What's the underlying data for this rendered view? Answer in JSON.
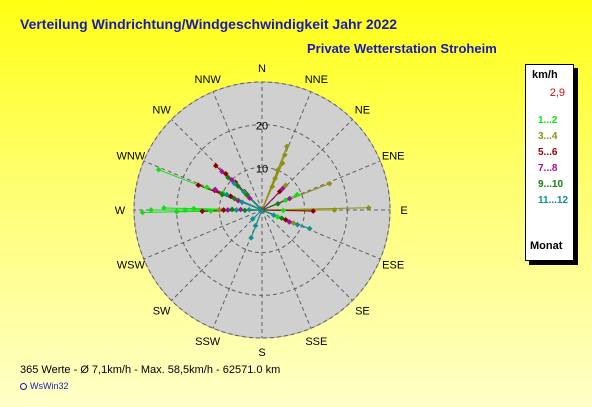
{
  "title": "Verteilung Windrichtung/Windgeschwindigkeit  Jahr 2022",
  "subtitle": "Private Wetterstation Stroheim",
  "stats_line": "365 Werte   -   Ø 7,1km/h  -  Max. 58,5km/h  -   62571.0 km",
  "brand": "WsWin32",
  "legend": {
    "header": "km/h",
    "top_value": "2,9",
    "footer": "Monat",
    "items": [
      {
        "label": "1...2",
        "color": "#10e010"
      },
      {
        "label": "3...4",
        "color": "#909010"
      },
      {
        "label": "5...6",
        "color": "#900000"
      },
      {
        "label": "7...8",
        "color": "#a010a0"
      },
      {
        "label": "9...10",
        "color": "#108010"
      },
      {
        "label": "11...12",
        "color": "#109090"
      }
    ]
  },
  "chart_data": {
    "type": "polar-scatter",
    "directions": [
      "N",
      "NNE",
      "NE",
      "ENE",
      "E",
      "ESE",
      "SE",
      "SSE",
      "S",
      "SSW",
      "SW",
      "WSW",
      "W",
      "WNW",
      "NW",
      "NNW"
    ],
    "radial_ticks": [
      10,
      20
    ],
    "rmax": 30,
    "grid": true,
    "legend_position": "right",
    "series": [
      {
        "name": "1...2",
        "color": "#10e010",
        "points": [
          {
            "dir": 270,
            "r": 28
          },
          {
            "dir": 270,
            "r": 26
          },
          {
            "dir": 270,
            "r": 23
          },
          {
            "dir": 270,
            "r": 20
          },
          {
            "dir": 270,
            "r": 18
          },
          {
            "dir": 270,
            "r": 16
          },
          {
            "dir": 292.5,
            "r": 26
          },
          {
            "dir": 292.5,
            "r": 14
          },
          {
            "dir": 292.5,
            "r": 10
          },
          {
            "dir": 67.5,
            "r": 9
          },
          {
            "dir": 67.5,
            "r": 6
          },
          {
            "dir": 90,
            "r": 5
          },
          {
            "dir": 270,
            "r": 12
          },
          {
            "dir": 292.5,
            "r": 6
          },
          {
            "dir": 112.5,
            "r": 4
          }
        ]
      },
      {
        "name": "3...4",
        "color": "#909010",
        "points": [
          {
            "dir": 22.5,
            "r": 16
          },
          {
            "dir": 22.5,
            "r": 14
          },
          {
            "dir": 22.5,
            "r": 12
          },
          {
            "dir": 22.5,
            "r": 10
          },
          {
            "dir": 22.5,
            "r": 8
          },
          {
            "dir": 22.5,
            "r": 6
          },
          {
            "dir": 90,
            "r": 25
          },
          {
            "dir": 90,
            "r": 17
          },
          {
            "dir": 67.5,
            "r": 17
          },
          {
            "dir": 45,
            "r": 8
          },
          {
            "dir": 270,
            "r": 10
          },
          {
            "dir": 292.5,
            "r": 8
          },
          {
            "dir": 315,
            "r": 5
          },
          {
            "dir": 112.5,
            "r": 8
          }
        ]
      },
      {
        "name": "5...6",
        "color": "#900000",
        "points": [
          {
            "dir": 315,
            "r": 15
          },
          {
            "dir": 315,
            "r": 12
          },
          {
            "dir": 315,
            "r": 9
          },
          {
            "dir": 292.5,
            "r": 16
          },
          {
            "dir": 292.5,
            "r": 12
          },
          {
            "dir": 292.5,
            "r": 8
          },
          {
            "dir": 270,
            "r": 14
          },
          {
            "dir": 270,
            "r": 9
          },
          {
            "dir": 90,
            "r": 12
          },
          {
            "dir": 45,
            "r": 6
          },
          {
            "dir": 112.5,
            "r": 6
          },
          {
            "dir": 315,
            "r": 6
          }
        ]
      },
      {
        "name": "7...8",
        "color": "#a010a0",
        "points": [
          {
            "dir": 315,
            "r": 13
          },
          {
            "dir": 315,
            "r": 10
          },
          {
            "dir": 292.5,
            "r": 12
          },
          {
            "dir": 292.5,
            "r": 6
          },
          {
            "dir": 270,
            "r": 8
          },
          {
            "dir": 270,
            "r": 5
          },
          {
            "dir": 45,
            "r": 7
          },
          {
            "dir": 67.5,
            "r": 7
          },
          {
            "dir": 112.5,
            "r": 7
          },
          {
            "dir": 315,
            "r": 4
          }
        ]
      },
      {
        "name": "9...10",
        "color": "#108010",
        "points": [
          {
            "dir": 315,
            "r": 11
          },
          {
            "dir": 315,
            "r": 8
          },
          {
            "dir": 315,
            "r": 5
          },
          {
            "dir": 292.5,
            "r": 10
          },
          {
            "dir": 292.5,
            "r": 7
          },
          {
            "dir": 270,
            "r": 7
          },
          {
            "dir": 270,
            "r": 4
          },
          {
            "dir": 112.5,
            "r": 5
          },
          {
            "dir": 67.5,
            "r": 4
          }
        ]
      },
      {
        "name": "11...12",
        "color": "#109090",
        "points": [
          {
            "dir": 315,
            "r": 9
          },
          {
            "dir": 315,
            "r": 6
          },
          {
            "dir": 292.5,
            "r": 9
          },
          {
            "dir": 292.5,
            "r": 5
          },
          {
            "dir": 270,
            "r": 6
          },
          {
            "dir": 270,
            "r": 3
          },
          {
            "dir": 112.5,
            "r": 12
          },
          {
            "dir": 112.5,
            "r": 9
          },
          {
            "dir": 112.5,
            "r": 3
          },
          {
            "dir": 202.5,
            "r": 7
          },
          {
            "dir": 202.5,
            "r": 4
          },
          {
            "dir": 225,
            "r": 3
          }
        ]
      }
    ]
  }
}
